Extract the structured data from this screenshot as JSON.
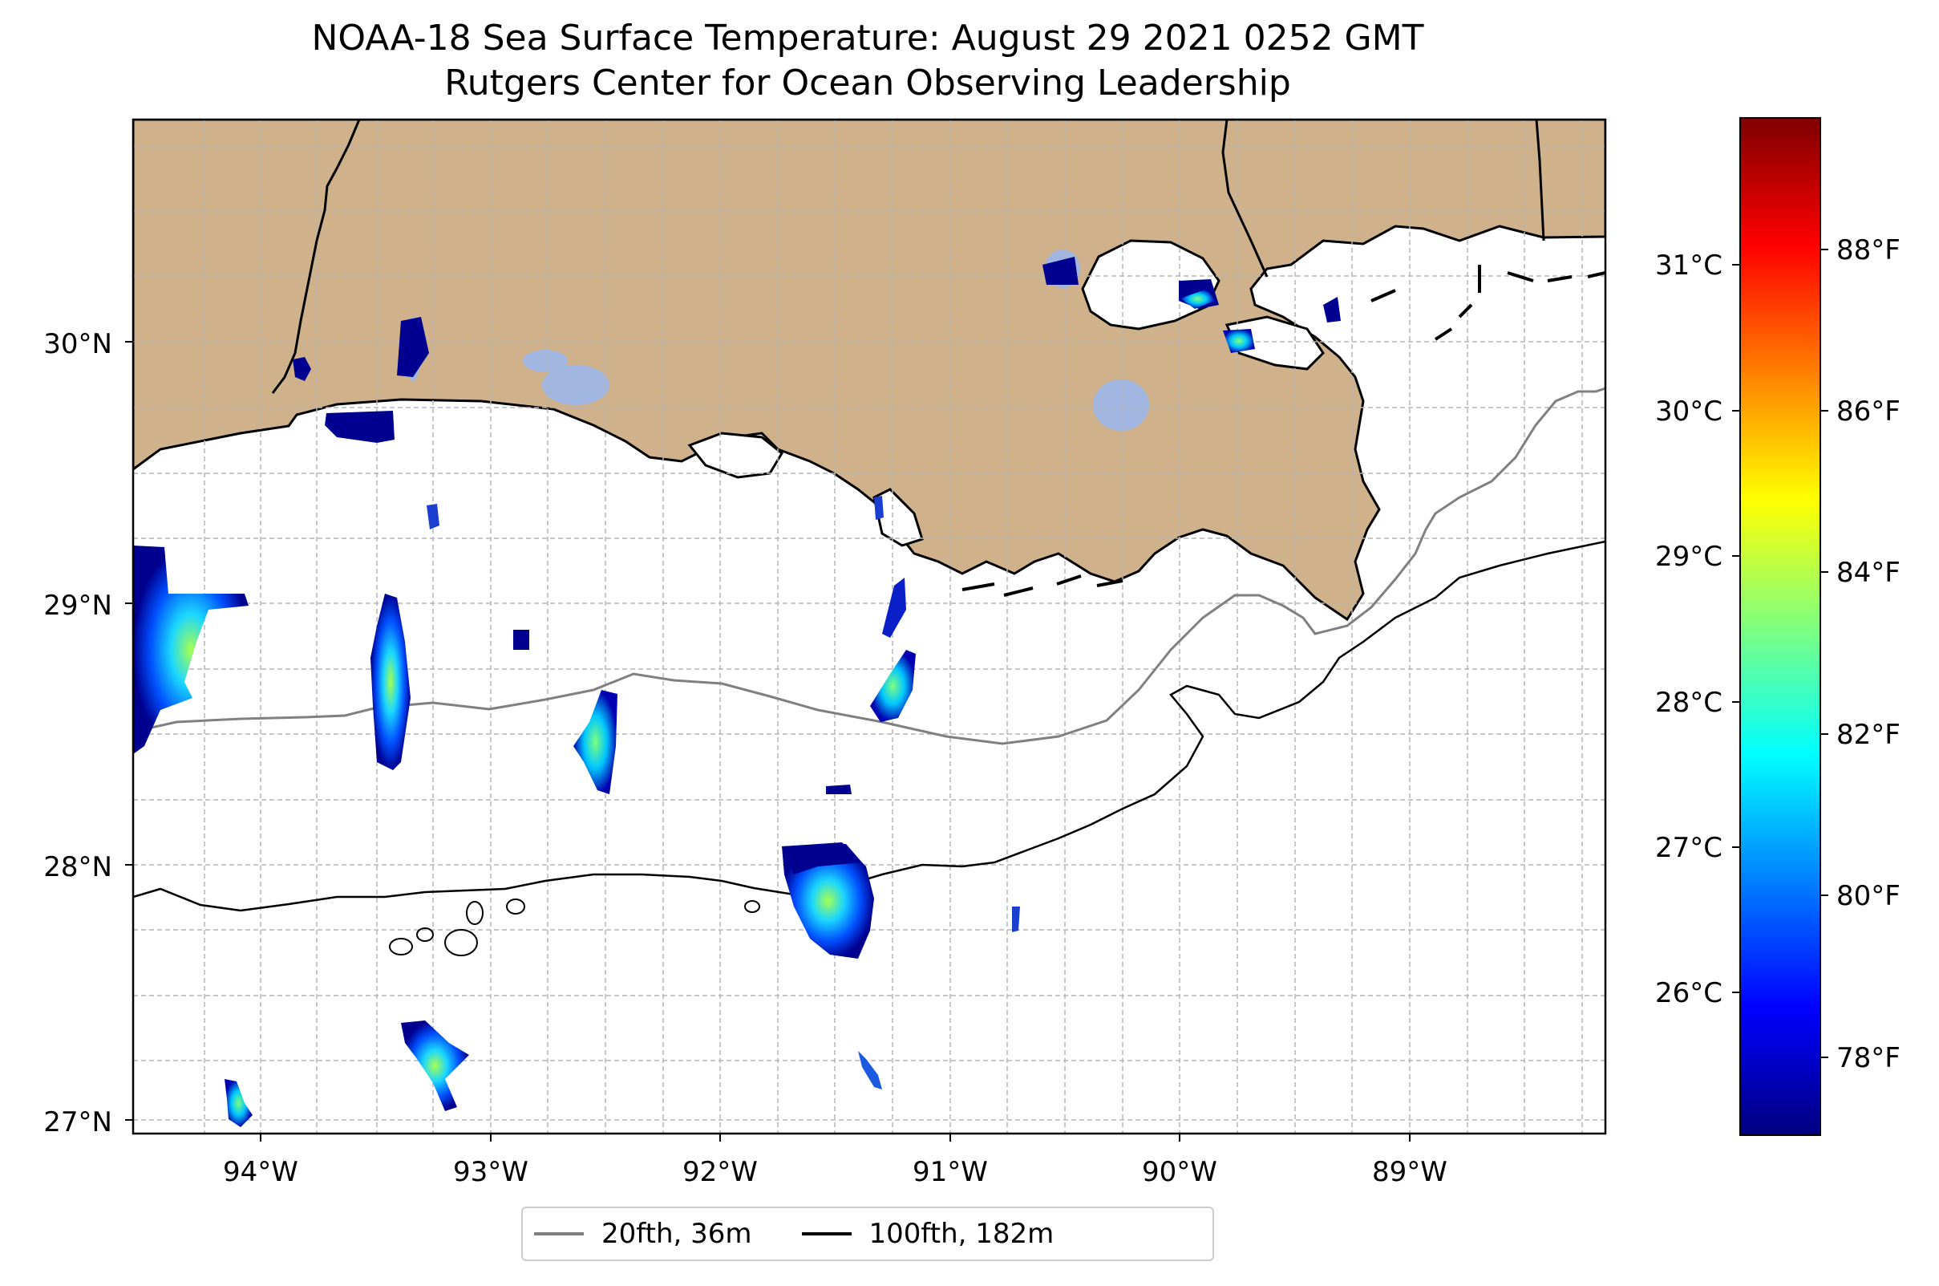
{
  "title": {
    "line1": "NOAA-18 Sea Surface Temperature: August 29 2021 0252 GMT",
    "line2": "Rutgers Center for Ocean Observing Leadership"
  },
  "map": {
    "lat_ticks": [
      "30°N",
      "29°N",
      "28°N",
      "27°N"
    ],
    "lon_ticks": [
      "94°W",
      "93°W",
      "92°W",
      "91°W",
      "90°W",
      "89°W"
    ],
    "lon_range": [
      -94.55,
      -88.1
    ],
    "lat_range": [
      26.93,
      30.85
    ],
    "land_color": "#cfb28b",
    "inland_water_color": "#a0b6e0",
    "gridlines": "dashed"
  },
  "colorbar": {
    "colormap": "jet",
    "celsius_ticks": [
      "31°C",
      "30°C",
      "29°C",
      "28°C",
      "27°C",
      "26°C"
    ],
    "fahrenheit_ticks": [
      "88°F",
      "86°F",
      "84°F",
      "82°F",
      "80°F",
      "78°F"
    ],
    "range_f": [
      77.0,
      89.9
    ]
  },
  "legend": {
    "items": [
      {
        "label": "20fth, 36m",
        "color": "#808080"
      },
      {
        "label": "100fth, 182m",
        "color": "#000000"
      }
    ]
  }
}
